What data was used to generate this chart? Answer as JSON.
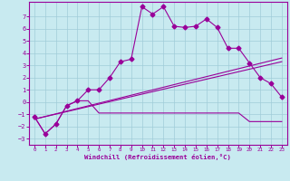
{
  "xlabel": "Windchill (Refroidissement éolien,°C)",
  "background_color": "#c8eaf0",
  "grid_color": "#a0ccd8",
  "line_color": "#990099",
  "xlim": [
    -0.5,
    23.5
  ],
  "ylim": [
    -3.5,
    8.2
  ],
  "xticks": [
    0,
    1,
    2,
    3,
    4,
    5,
    6,
    7,
    8,
    9,
    10,
    11,
    12,
    13,
    14,
    15,
    16,
    17,
    18,
    19,
    20,
    21,
    22,
    23
  ],
  "yticks": [
    -3,
    -2,
    -1,
    0,
    1,
    2,
    3,
    4,
    5,
    6,
    7
  ],
  "series1_x": [
    0,
    1,
    2,
    3,
    4,
    5,
    6,
    7,
    8,
    9,
    10,
    11,
    12,
    13,
    14,
    15,
    16,
    17,
    18,
    19,
    20,
    21,
    22,
    23
  ],
  "series1_y": [
    -1.2,
    -2.6,
    -1.8,
    -0.3,
    0.1,
    1.0,
    1.0,
    2.0,
    3.3,
    3.5,
    7.8,
    7.2,
    7.8,
    6.2,
    6.1,
    6.2,
    6.8,
    6.1,
    4.4,
    4.4,
    3.2,
    2.0,
    1.5,
    0.4
  ],
  "series2_x": [
    0,
    1,
    2,
    3,
    4,
    5,
    6,
    7,
    8,
    9,
    10,
    11,
    12,
    13,
    14,
    15,
    16,
    17,
    18,
    19,
    20,
    21,
    22,
    23
  ],
  "series2_y": [
    -1.2,
    -2.6,
    -1.8,
    -0.3,
    0.1,
    0.1,
    -0.9,
    -0.9,
    -0.9,
    -0.9,
    -0.9,
    -0.9,
    -0.9,
    -0.9,
    -0.9,
    -0.9,
    -0.9,
    -0.9,
    -0.9,
    -0.9,
    -1.6,
    -1.6,
    -1.6,
    -1.6
  ],
  "series3_x": [
    0,
    23
  ],
  "series3_y": [
    -1.4,
    3.3
  ],
  "series4_x": [
    0,
    23
  ],
  "series4_y": [
    -1.4,
    3.6
  ],
  "font_family": "monospace"
}
